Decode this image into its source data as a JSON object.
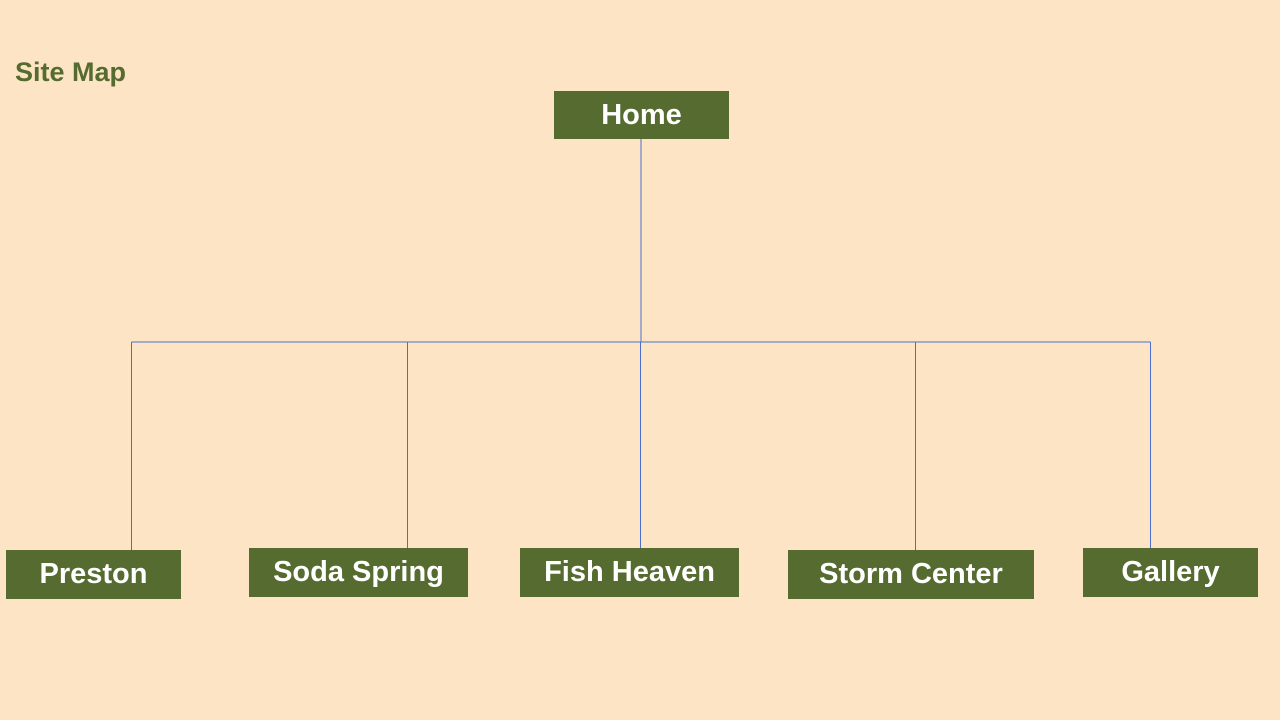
{
  "title": "Site Map",
  "root": {
    "label": "Home"
  },
  "children": [
    {
      "label": "Preston"
    },
    {
      "label": "Soda Spring"
    },
    {
      "label": "Fish Heaven"
    },
    {
      "label": "Storm Center"
    },
    {
      "label": "Gallery"
    }
  ],
  "colors": {
    "background": "#fde4c4",
    "node_fill": "#556b2f",
    "node_text": "#ffffff",
    "title_text": "#556b2f",
    "connector": "#4a6fd1"
  }
}
